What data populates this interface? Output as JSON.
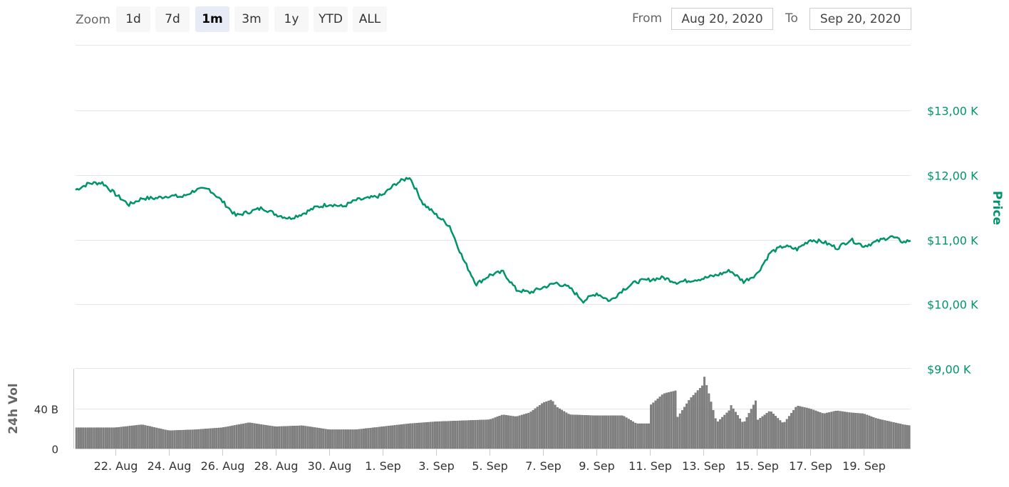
{
  "toolbar": {
    "zoom_label": "Zoom",
    "zoom_buttons": [
      {
        "label": "1d",
        "active": false
      },
      {
        "label": "7d",
        "active": false
      },
      {
        "label": "1m",
        "active": true
      },
      {
        "label": "3m",
        "active": false
      },
      {
        "label": "1y",
        "active": false
      },
      {
        "label": "YTD",
        "active": false
      },
      {
        "label": "ALL",
        "active": false
      }
    ],
    "from_label": "From",
    "from_value": "Aug 20, 2020",
    "to_label": "To",
    "to_value": "Sep 20, 2020"
  },
  "chart_data": [
    {
      "type": "line",
      "ylabel": "Price",
      "color": "#00946b",
      "ylim": [
        9000,
        13000
      ],
      "yticks": [
        9000,
        10000,
        11000,
        12000,
        13000
      ],
      "ytick_labels": [
        "$9,00 K",
        "$10,00 K",
        "$11,00 K",
        "$12,00 K",
        "$13,00 K"
      ],
      "xlim": [
        "2020-08-20T12:00",
        "2020-09-20T18:00"
      ],
      "xticks": [
        "2020-08-22",
        "2020-08-24",
        "2020-08-26",
        "2020-08-28",
        "2020-08-30",
        "2020-09-01",
        "2020-09-03",
        "2020-09-05",
        "2020-09-07",
        "2020-09-09",
        "2020-09-11",
        "2020-09-13",
        "2020-09-15",
        "2020-09-17",
        "2020-09-19"
      ],
      "xtick_labels": [
        "22. Aug",
        "24. Aug",
        "26. Aug",
        "28. Aug",
        "30. Aug",
        "1. Sep",
        "3. Sep",
        "5. Sep",
        "7. Sep",
        "9. Sep",
        "11. Sep",
        "13. Sep",
        "15. Sep",
        "17. Sep",
        "19. Sep"
      ],
      "x": [
        "2020-08-20T12:00",
        "2020-08-21T00:00",
        "2020-08-21T12:00",
        "2020-08-22T00:00",
        "2020-08-22T12:00",
        "2020-08-23T00:00",
        "2020-08-23T12:00",
        "2020-08-24T00:00",
        "2020-08-24T12:00",
        "2020-08-25T00:00",
        "2020-08-25T12:00",
        "2020-08-26T00:00",
        "2020-08-26T12:00",
        "2020-08-27T00:00",
        "2020-08-27T12:00",
        "2020-08-28T00:00",
        "2020-08-28T12:00",
        "2020-08-29T00:00",
        "2020-08-29T12:00",
        "2020-08-30T00:00",
        "2020-08-30T12:00",
        "2020-08-31T00:00",
        "2020-08-31T12:00",
        "2020-09-01T00:00",
        "2020-09-01T12:00",
        "2020-09-02T00:00",
        "2020-09-02T12:00",
        "2020-09-03T00:00",
        "2020-09-03T12:00",
        "2020-09-04T00:00",
        "2020-09-04T12:00",
        "2020-09-05T00:00",
        "2020-09-05T12:00",
        "2020-09-06T00:00",
        "2020-09-06T12:00",
        "2020-09-07T00:00",
        "2020-09-07T12:00",
        "2020-09-08T00:00",
        "2020-09-08T12:00",
        "2020-09-09T00:00",
        "2020-09-09T12:00",
        "2020-09-10T00:00",
        "2020-09-10T12:00",
        "2020-09-11T00:00",
        "2020-09-11T12:00",
        "2020-09-12T00:00",
        "2020-09-12T12:00",
        "2020-09-13T00:00",
        "2020-09-13T12:00",
        "2020-09-14T00:00",
        "2020-09-14T12:00",
        "2020-09-15T00:00",
        "2020-09-15T12:00",
        "2020-09-16T00:00",
        "2020-09-16T12:00",
        "2020-09-17T00:00",
        "2020-09-17T12:00",
        "2020-09-18T00:00",
        "2020-09-18T12:00",
        "2020-09-19T00:00",
        "2020-09-19T12:00",
        "2020-09-20T00:00",
        "2020-09-20T12:00",
        "2020-09-20T18:00"
      ],
      "values": [
        11770,
        11870,
        11880,
        11700,
        11540,
        11640,
        11640,
        11680,
        11660,
        11770,
        11780,
        11590,
        11370,
        11430,
        11490,
        11390,
        11330,
        11400,
        11500,
        11550,
        11510,
        11610,
        11640,
        11690,
        11870,
        11970,
        11560,
        11380,
        11210,
        10700,
        10310,
        10450,
        10500,
        10220,
        10180,
        10260,
        10330,
        10250,
        10050,
        10170,
        10050,
        10230,
        10350,
        10380,
        10410,
        10340,
        10370,
        10400,
        10450,
        10520,
        10350,
        10470,
        10800,
        10900,
        10850,
        11000,
        10960,
        10870,
        11000,
        10900,
        10970,
        11050,
        10960,
        10990
      ]
    },
    {
      "type": "bar",
      "ylabel": "24h Vol",
      "color": "#808080",
      "ylim": [
        0,
        80
      ],
      "yticks": [
        0,
        40
      ],
      "ytick_labels": [
        "0",
        "40 B"
      ],
      "x_range": [
        "2020-08-20T12:00",
        "2020-09-20T18:00"
      ],
      "anchor_x": [
        "2020-08-20T12:00",
        "2020-08-22T00:00",
        "2020-08-23T00:00",
        "2020-08-24T00:00",
        "2020-08-25T00:00",
        "2020-08-26T00:00",
        "2020-08-27T00:00",
        "2020-08-28T00:00",
        "2020-08-29T00:00",
        "2020-08-30T00:00",
        "2020-08-31T00:00",
        "2020-09-01T00:00",
        "2020-09-02T00:00",
        "2020-09-03T00:00",
        "2020-09-04T00:00",
        "2020-09-05T00:00",
        "2020-09-05T12:00",
        "2020-09-06T00:00",
        "2020-09-06T12:00",
        "2020-09-07T00:00",
        "2020-09-07T08:00",
        "2020-09-07T12:00",
        "2020-09-08T00:00",
        "2020-09-09T00:00",
        "2020-09-10T00:00",
        "2020-09-10T12:00",
        "2020-09-10T23:00",
        "2020-09-11T00:00",
        "2020-09-11T12:00",
        "2020-09-11T23:00",
        "2020-09-12T00:00",
        "2020-09-12T12:00",
        "2020-09-12T23:00",
        "2020-09-13T00:00",
        "2020-09-13T12:00",
        "2020-09-13T23:00",
        "2020-09-14T00:00",
        "2020-09-14T12:00",
        "2020-09-14T23:00",
        "2020-09-15T00:00",
        "2020-09-15T12:00",
        "2020-09-16T00:00",
        "2020-09-16T12:00",
        "2020-09-17T00:00",
        "2020-09-17T12:00",
        "2020-09-18T00:00",
        "2020-09-18T12:00",
        "2020-09-19T00:00",
        "2020-09-19T12:00",
        "2020-09-20T00:00",
        "2020-09-20T12:00",
        "2020-09-20T18:00"
      ],
      "anchor_values": [
        21,
        21,
        24,
        18,
        19,
        21,
        26,
        22,
        23,
        19,
        19,
        22,
        25,
        27,
        28,
        29,
        34,
        32,
        36,
        46,
        49,
        42,
        34,
        33,
        33,
        25,
        25,
        43,
        55,
        58,
        30,
        50,
        63,
        76,
        26,
        38,
        45,
        25,
        48,
        28,
        38,
        25,
        43,
        40,
        35,
        38,
        36,
        35,
        30,
        27,
        24,
        23
      ]
    }
  ]
}
